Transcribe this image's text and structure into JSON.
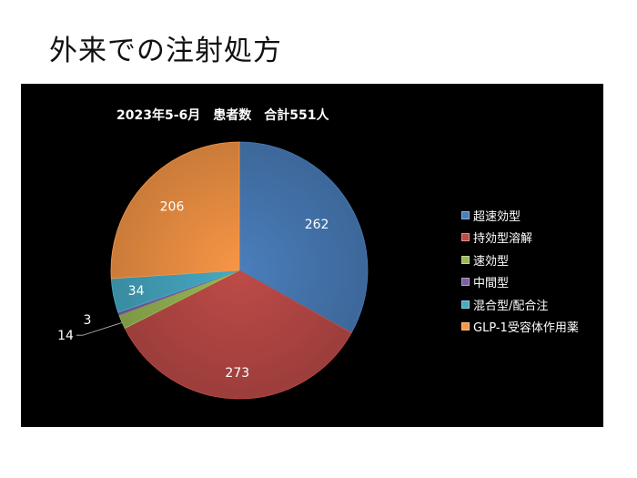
{
  "slide": {
    "title": "外来での注射処方"
  },
  "chart_data": {
    "type": "pie",
    "title": "2023年5-6月　患者数　合計551人",
    "categories": [
      "超速効型",
      "持効型溶解",
      "速効型",
      "中間型",
      "混合型/配合注",
      "GLP-1受容体作用薬"
    ],
    "values": [
      262,
      273,
      14,
      3,
      34,
      206
    ],
    "colors": [
      "#4a7ebb",
      "#be4b48",
      "#98b954",
      "#7d60a0",
      "#46aac4",
      "#f79646"
    ],
    "legend_position": "right"
  }
}
